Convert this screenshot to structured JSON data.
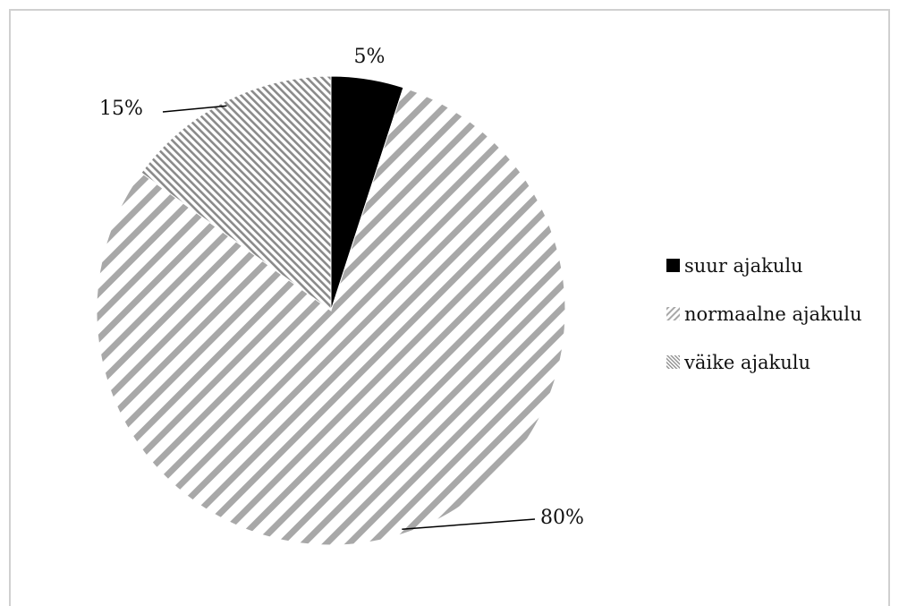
{
  "chart_data": {
    "type": "pie",
    "categories": [
      "suur ajakulu",
      "normaalne ajakulu",
      "väike ajakulu"
    ],
    "values": [
      5,
      80,
      15
    ],
    "data_labels": [
      "5%",
      "80%",
      "15%"
    ],
    "slice_fills": [
      "solid-black",
      "diagonal-stripes",
      "fine-diagonal-stripes"
    ],
    "colors": {
      "solid": "#000000",
      "stripe": "#a8a8a8",
      "background": "#ffffff"
    },
    "legend": {
      "placement": "right",
      "entries": [
        "suur ajakulu",
        "normaalne ajakulu",
        "väike ajakulu"
      ]
    },
    "title": "",
    "xlabel": "",
    "ylabel": ""
  }
}
